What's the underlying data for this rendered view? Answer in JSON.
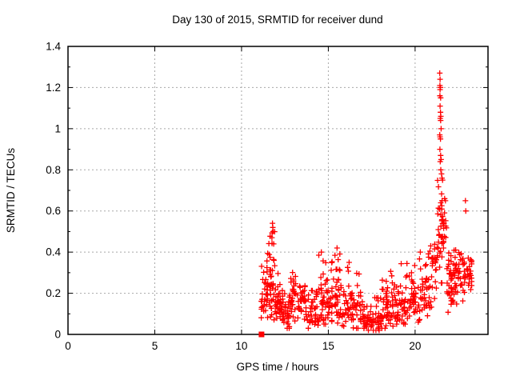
{
  "chart_data": {
    "type": "scatter",
    "title": "Day 130 of 2015, SRMTID for receiver dund",
    "xlabel": "GPS time / hours",
    "ylabel": "SRMTID / TECUs",
    "xlim": [
      0,
      24.2
    ],
    "ylim": [
      0,
      1.4
    ],
    "xticks": [
      0,
      5,
      10,
      15,
      20
    ],
    "yticks": [
      0,
      0.2,
      0.4,
      0.6,
      0.8,
      1,
      1.2,
      1.4
    ],
    "y_minor_ticks": [
      0.1,
      0.3,
      0.5,
      0.7,
      0.9,
      1.1,
      1.3
    ],
    "grid": true,
    "legend": "none",
    "marker": "plus",
    "marker_color": "#ff0000",
    "grid_color": "#a8a8a8",
    "border_color": "#000000",
    "data_span_hours": [
      11.1,
      23.3
    ],
    "max_point": {
      "x": 21.45,
      "y": 1.27
    },
    "start_marker": {
      "x": 11.15,
      "y": 0,
      "type": "filled-square"
    },
    "seed": 1301520,
    "clusters_note": "dense scatter approximated by [x_start, x_end, count, y_min, y_max, y_mode] bins read from plot",
    "clusters": [
      [
        11.15,
        11.5,
        28,
        0.03,
        0.36,
        0.17
      ],
      [
        11.5,
        11.95,
        45,
        0.05,
        0.5,
        0.24
      ],
      [
        11.95,
        12.4,
        38,
        0.04,
        0.33,
        0.14
      ],
      [
        12.4,
        12.8,
        26,
        0.03,
        0.22,
        0.1
      ],
      [
        12.8,
        13.3,
        34,
        0.05,
        0.33,
        0.17
      ],
      [
        13.3,
        13.8,
        30,
        0.06,
        0.28,
        0.15
      ],
      [
        13.8,
        14.3,
        28,
        0.03,
        0.22,
        0.1
      ],
      [
        14.3,
        14.8,
        34,
        0.04,
        0.4,
        0.15
      ],
      [
        14.8,
        15.3,
        34,
        0.05,
        0.38,
        0.17
      ],
      [
        15.3,
        15.8,
        36,
        0.05,
        0.42,
        0.19
      ],
      [
        15.8,
        16.4,
        36,
        0.04,
        0.33,
        0.14
      ],
      [
        16.4,
        17.0,
        34,
        0.03,
        0.3,
        0.11
      ],
      [
        17.0,
        17.6,
        36,
        0.02,
        0.14,
        0.06
      ],
      [
        17.6,
        18.1,
        34,
        0.02,
        0.18,
        0.07
      ],
      [
        18.1,
        18.6,
        34,
        0.03,
        0.3,
        0.11
      ],
      [
        18.6,
        19.2,
        36,
        0.04,
        0.32,
        0.13
      ],
      [
        19.2,
        19.8,
        36,
        0.05,
        0.35,
        0.15
      ],
      [
        19.8,
        20.4,
        36,
        0.06,
        0.37,
        0.17
      ],
      [
        20.4,
        21.0,
        36,
        0.08,
        0.42,
        0.2
      ],
      [
        21.0,
        21.3,
        20,
        0.15,
        0.55,
        0.3
      ],
      [
        21.3,
        21.6,
        26,
        0.25,
        0.75,
        0.45
      ],
      [
        21.55,
        21.85,
        20,
        0.35,
        0.68,
        0.5
      ],
      [
        21.85,
        22.3,
        40,
        0.08,
        0.45,
        0.24
      ],
      [
        22.3,
        22.8,
        36,
        0.12,
        0.42,
        0.27
      ],
      [
        22.8,
        23.3,
        30,
        0.15,
        0.4,
        0.28
      ]
    ],
    "peaks": [
      [
        11.78,
        0.54
      ],
      [
        11.8,
        0.52
      ],
      [
        11.82,
        0.5
      ],
      [
        11.75,
        0.47
      ],
      [
        11.85,
        0.44
      ],
      [
        14.6,
        0.4
      ],
      [
        15.5,
        0.42
      ],
      [
        16.2,
        0.35
      ],
      [
        20.3,
        0.4
      ],
      [
        20.9,
        0.43
      ],
      [
        21.42,
        1.27
      ],
      [
        21.44,
        1.24
      ],
      [
        21.43,
        1.21
      ],
      [
        21.45,
        1.2
      ],
      [
        21.46,
        1.2
      ],
      [
        21.44,
        1.19
      ],
      [
        21.43,
        1.16
      ],
      [
        21.47,
        1.15
      ],
      [
        21.44,
        1.11
      ],
      [
        21.46,
        1.08
      ],
      [
        21.48,
        1.06
      ],
      [
        21.45,
        1.05
      ],
      [
        21.47,
        1.04
      ],
      [
        21.5,
        1.0
      ],
      [
        21.42,
        0.97
      ],
      [
        21.44,
        0.96
      ],
      [
        21.46,
        0.95
      ],
      [
        21.43,
        0.9
      ],
      [
        21.47,
        0.87
      ],
      [
        21.5,
        0.85
      ],
      [
        21.45,
        0.84
      ],
      [
        21.48,
        0.8
      ],
      [
        21.52,
        0.78
      ],
      [
        21.55,
        0.76
      ],
      [
        21.58,
        0.75
      ],
      [
        21.7,
        0.66
      ],
      [
        21.75,
        0.65
      ],
      [
        22.9,
        0.65
      ],
      [
        22.92,
        0.6
      ]
    ]
  }
}
